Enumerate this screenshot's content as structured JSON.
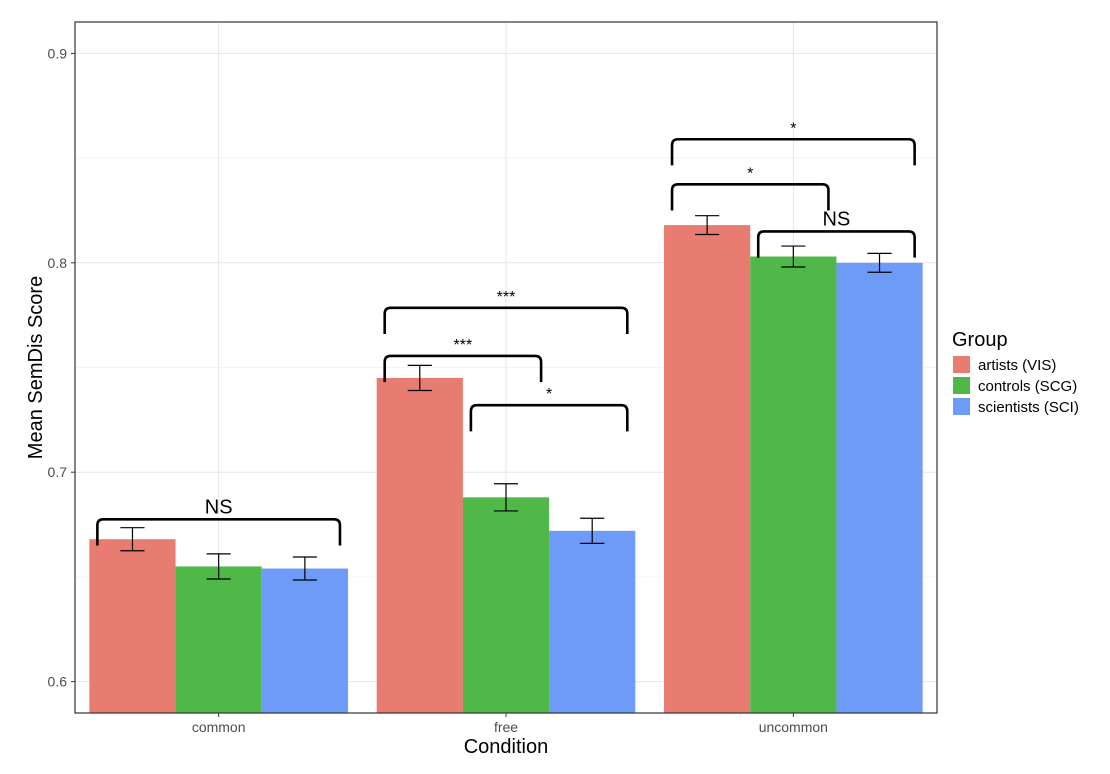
{
  "chart_data": {
    "type": "bar",
    "xlabel": "Condition",
    "ylabel": "Mean SemDis Score",
    "ylim": [
      0.585,
      0.915
    ],
    "yticks": [
      0.6,
      0.7,
      0.8,
      0.9
    ],
    "grid": true,
    "categories": [
      "common",
      "free",
      "uncommon"
    ],
    "legend": {
      "title": "Group",
      "placement": "right"
    },
    "series": [
      {
        "name": "artists (VIS)",
        "color": "#E87C71",
        "values": [
          0.668,
          0.745,
          0.818
        ],
        "errors": [
          0.0055,
          0.006,
          0.0045
        ]
      },
      {
        "name": "controls (SCG)",
        "color": "#50B848",
        "values": [
          0.655,
          0.688,
          0.803
        ],
        "errors": [
          0.006,
          0.0065,
          0.005
        ]
      },
      {
        "name": "scientists (SCI)",
        "color": "#6D9BF7",
        "values": [
          0.654,
          0.672,
          0.8
        ],
        "errors": [
          0.0055,
          0.006,
          0.0045
        ]
      }
    ],
    "annotations": [
      {
        "label": "NS",
        "category": 0,
        "from": 0,
        "to": 2,
        "y": 0.6775,
        "height": 0.0125,
        "size": 20
      },
      {
        "label": "***",
        "category": 1,
        "from": 0,
        "to": 1,
        "y": 0.7555,
        "height": 0.0125,
        "size": 16
      },
      {
        "label": "***",
        "category": 1,
        "from": 0,
        "to": 2,
        "y": 0.7785,
        "height": 0.0125,
        "size": 16
      },
      {
        "label": "*",
        "category": 1,
        "from": 1,
        "to": 2,
        "y": 0.732,
        "height": 0.0125,
        "size": 16
      },
      {
        "label": "*",
        "category": 2,
        "from": 0,
        "to": 1,
        "y": 0.8375,
        "height": 0.0125,
        "size": 16
      },
      {
        "label": "*",
        "category": 2,
        "from": 0,
        "to": 2,
        "y": 0.859,
        "height": 0.0125,
        "size": 16
      },
      {
        "label": "NS",
        "category": 2,
        "from": 1,
        "to": 2,
        "y": 0.815,
        "height": 0.0125,
        "size": 20
      }
    ]
  }
}
